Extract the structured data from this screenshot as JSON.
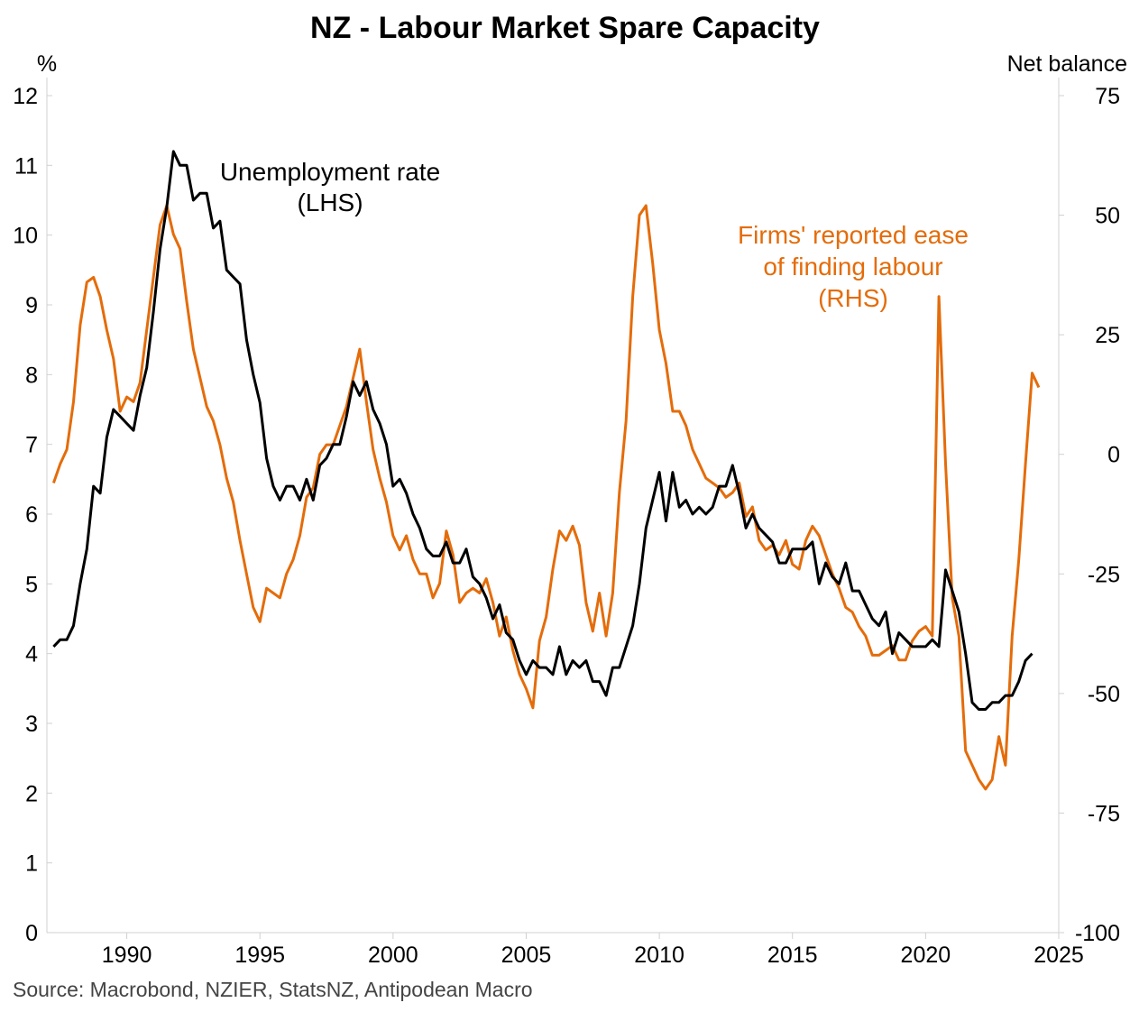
{
  "chart_data": {
    "type": "line",
    "title": "NZ - Labour Market Spare Capacity",
    "source": "Source: Macrobond, NZIER, StatsNZ, Antipodean Macro",
    "y_left": {
      "unit_label": "%",
      "ylim": [
        0,
        12
      ],
      "ticks": [
        "0",
        "1",
        "2",
        "3",
        "4",
        "5",
        "6",
        "7",
        "8",
        "9",
        "10",
        "11",
        "12"
      ]
    },
    "y_right": {
      "unit_label": "Net balance",
      "ylim": [
        -100,
        75
      ],
      "ticks": [
        "-100",
        "-75",
        "-50",
        "-25",
        "0",
        "25",
        "50",
        "75"
      ]
    },
    "x": {
      "xlim": [
        1987,
        2025
      ],
      "ticks": [
        "1990",
        "1995",
        "2000",
        "2005",
        "2010",
        "2015",
        "2020",
        "2025"
      ]
    },
    "grid": false,
    "annotations": [
      {
        "series": "unemployment",
        "lines": [
          "Unemployment rate",
          "(LHS)"
        ]
      },
      {
        "series": "firms",
        "lines": [
          "Firms' reported ease",
          "of finding labour",
          "(RHS)"
        ]
      }
    ],
    "series": [
      {
        "id": "unemployment",
        "axis": "left",
        "color": "#000000",
        "points": [
          [
            1987.25,
            4.1
          ],
          [
            1987.5,
            4.2
          ],
          [
            1987.75,
            4.2
          ],
          [
            1988.0,
            4.4
          ],
          [
            1988.25,
            5.0
          ],
          [
            1988.5,
            5.5
          ],
          [
            1988.75,
            6.4
          ],
          [
            1989.0,
            6.3
          ],
          [
            1989.25,
            7.1
          ],
          [
            1989.5,
            7.5
          ],
          [
            1989.75,
            7.4
          ],
          [
            1990.0,
            7.3
          ],
          [
            1990.25,
            7.2
          ],
          [
            1990.5,
            7.7
          ],
          [
            1990.75,
            8.1
          ],
          [
            1991.0,
            8.9
          ],
          [
            1991.25,
            9.8
          ],
          [
            1991.5,
            10.4
          ],
          [
            1991.75,
            11.2
          ],
          [
            1992.0,
            11.0
          ],
          [
            1992.25,
            11.0
          ],
          [
            1992.5,
            10.5
          ],
          [
            1992.75,
            10.6
          ],
          [
            1993.0,
            10.6
          ],
          [
            1993.25,
            10.1
          ],
          [
            1993.5,
            10.2
          ],
          [
            1993.75,
            9.5
          ],
          [
            1994.0,
            9.4
          ],
          [
            1994.25,
            9.3
          ],
          [
            1994.5,
            8.5
          ],
          [
            1994.75,
            8.0
          ],
          [
            1995.0,
            7.6
          ],
          [
            1995.25,
            6.8
          ],
          [
            1995.5,
            6.4
          ],
          [
            1995.75,
            6.2
          ],
          [
            1996.0,
            6.4
          ],
          [
            1996.25,
            6.4
          ],
          [
            1996.5,
            6.2
          ],
          [
            1996.75,
            6.5
          ],
          [
            1997.0,
            6.2
          ],
          [
            1997.25,
            6.7
          ],
          [
            1997.5,
            6.8
          ],
          [
            1997.75,
            7.0
          ],
          [
            1998.0,
            7.0
          ],
          [
            1998.25,
            7.4
          ],
          [
            1998.5,
            7.9
          ],
          [
            1998.75,
            7.7
          ],
          [
            1999.0,
            7.9
          ],
          [
            1999.25,
            7.5
          ],
          [
            1999.5,
            7.3
          ],
          [
            1999.75,
            7.0
          ],
          [
            2000.0,
            6.4
          ],
          [
            2000.25,
            6.5
          ],
          [
            2000.5,
            6.3
          ],
          [
            2000.75,
            6.0
          ],
          [
            2001.0,
            5.8
          ],
          [
            2001.25,
            5.5
          ],
          [
            2001.5,
            5.4
          ],
          [
            2001.75,
            5.4
          ],
          [
            2002.0,
            5.6
          ],
          [
            2002.25,
            5.3
          ],
          [
            2002.5,
            5.3
          ],
          [
            2002.75,
            5.5
          ],
          [
            2003.0,
            5.1
          ],
          [
            2003.25,
            5.0
          ],
          [
            2003.5,
            4.8
          ],
          [
            2003.75,
            4.5
          ],
          [
            2004.0,
            4.7
          ],
          [
            2004.25,
            4.3
          ],
          [
            2004.5,
            4.2
          ],
          [
            2004.75,
            3.9
          ],
          [
            2005.0,
            3.7
          ],
          [
            2005.25,
            3.9
          ],
          [
            2005.5,
            3.8
          ],
          [
            2005.75,
            3.8
          ],
          [
            2006.0,
            3.7
          ],
          [
            2006.25,
            4.1
          ],
          [
            2006.5,
            3.7
          ],
          [
            2006.75,
            3.9
          ],
          [
            2007.0,
            3.8
          ],
          [
            2007.25,
            3.9
          ],
          [
            2007.5,
            3.6
          ],
          [
            2007.75,
            3.6
          ],
          [
            2008.0,
            3.4
          ],
          [
            2008.25,
            3.8
          ],
          [
            2008.5,
            3.8
          ],
          [
            2008.75,
            4.1
          ],
          [
            2009.0,
            4.4
          ],
          [
            2009.25,
            5.0
          ],
          [
            2009.5,
            5.8
          ],
          [
            2009.75,
            6.2
          ],
          [
            2010.0,
            6.6
          ],
          [
            2010.25,
            5.9
          ],
          [
            2010.5,
            6.6
          ],
          [
            2010.75,
            6.1
          ],
          [
            2011.0,
            6.2
          ],
          [
            2011.25,
            6.0
          ],
          [
            2011.5,
            6.1
          ],
          [
            2011.75,
            6.0
          ],
          [
            2012.0,
            6.1
          ],
          [
            2012.25,
            6.4
          ],
          [
            2012.5,
            6.4
          ],
          [
            2012.75,
            6.7
          ],
          [
            2013.0,
            6.3
          ],
          [
            2013.25,
            5.8
          ],
          [
            2013.5,
            6.0
          ],
          [
            2013.75,
            5.8
          ],
          [
            2014.0,
            5.7
          ],
          [
            2014.25,
            5.6
          ],
          [
            2014.5,
            5.3
          ],
          [
            2014.75,
            5.3
          ],
          [
            2015.0,
            5.5
          ],
          [
            2015.25,
            5.5
          ],
          [
            2015.5,
            5.5
          ],
          [
            2015.75,
            5.6
          ],
          [
            2016.0,
            5.0
          ],
          [
            2016.25,
            5.3
          ],
          [
            2016.5,
            5.1
          ],
          [
            2016.75,
            5.0
          ],
          [
            2017.0,
            5.3
          ],
          [
            2017.25,
            4.9
          ],
          [
            2017.5,
            4.9
          ],
          [
            2017.75,
            4.7
          ],
          [
            2018.0,
            4.5
          ],
          [
            2018.25,
            4.4
          ],
          [
            2018.5,
            4.6
          ],
          [
            2018.75,
            4.0
          ],
          [
            2019.0,
            4.3
          ],
          [
            2019.25,
            4.2
          ],
          [
            2019.5,
            4.1
          ],
          [
            2019.75,
            4.1
          ],
          [
            2020.0,
            4.1
          ],
          [
            2020.25,
            4.2
          ],
          [
            2020.5,
            4.1
          ],
          [
            2020.75,
            5.2
          ],
          [
            2021.0,
            4.9
          ],
          [
            2021.25,
            4.6
          ],
          [
            2021.5,
            4.0
          ],
          [
            2021.75,
            3.3
          ],
          [
            2022.0,
            3.2
          ],
          [
            2022.25,
            3.2
          ],
          [
            2022.5,
            3.3
          ],
          [
            2022.75,
            3.3
          ],
          [
            2023.0,
            3.4
          ],
          [
            2023.25,
            3.4
          ],
          [
            2023.5,
            3.6
          ],
          [
            2023.75,
            3.9
          ],
          [
            2024.0,
            4.0
          ]
        ]
      },
      {
        "id": "firms",
        "axis": "right",
        "color": "#E46C0A",
        "points": [
          [
            1987.25,
            -6
          ],
          [
            1987.5,
            -2
          ],
          [
            1987.75,
            1
          ],
          [
            1988.0,
            11
          ],
          [
            1988.25,
            27
          ],
          [
            1988.5,
            36
          ],
          [
            1988.75,
            37
          ],
          [
            1989.0,
            33
          ],
          [
            1989.25,
            26
          ],
          [
            1989.5,
            20
          ],
          [
            1989.75,
            9
          ],
          [
            1990.0,
            12
          ],
          [
            1990.25,
            11
          ],
          [
            1990.5,
            15
          ],
          [
            1990.75,
            26
          ],
          [
            1991.0,
            37
          ],
          [
            1991.25,
            48
          ],
          [
            1991.5,
            52
          ],
          [
            1991.75,
            46
          ],
          [
            1992.0,
            43
          ],
          [
            1992.25,
            32
          ],
          [
            1992.5,
            22
          ],
          [
            1992.75,
            16
          ],
          [
            1993.0,
            10
          ],
          [
            1993.25,
            7
          ],
          [
            1993.5,
            2
          ],
          [
            1993.75,
            -5
          ],
          [
            1994.0,
            -10
          ],
          [
            1994.25,
            -18
          ],
          [
            1994.5,
            -25
          ],
          [
            1994.75,
            -32
          ],
          [
            1995.0,
            -35
          ],
          [
            1995.25,
            -28
          ],
          [
            1995.5,
            -29
          ],
          [
            1995.75,
            -30
          ],
          [
            1996.0,
            -25
          ],
          [
            1996.25,
            -22
          ],
          [
            1996.5,
            -17
          ],
          [
            1996.75,
            -9
          ],
          [
            1997.0,
            -7
          ],
          [
            1997.25,
            0
          ],
          [
            1997.5,
            2
          ],
          [
            1997.75,
            2
          ],
          [
            1998.0,
            6
          ],
          [
            1998.25,
            10
          ],
          [
            1998.5,
            16
          ],
          [
            1998.75,
            22
          ],
          [
            1999.0,
            11
          ],
          [
            1999.25,
            1
          ],
          [
            1999.5,
            -5
          ],
          [
            1999.75,
            -10
          ],
          [
            2000.0,
            -17
          ],
          [
            2000.25,
            -20
          ],
          [
            2000.5,
            -17
          ],
          [
            2000.75,
            -22
          ],
          [
            2001.0,
            -25
          ],
          [
            2001.25,
            -25
          ],
          [
            2001.5,
            -30
          ],
          [
            2001.75,
            -27
          ],
          [
            2002.0,
            -16
          ],
          [
            2002.25,
            -21
          ],
          [
            2002.5,
            -31
          ],
          [
            2002.75,
            -29
          ],
          [
            2003.0,
            -28
          ],
          [
            2003.25,
            -29
          ],
          [
            2003.5,
            -26
          ],
          [
            2003.75,
            -31
          ],
          [
            2004.0,
            -38
          ],
          [
            2004.25,
            -34
          ],
          [
            2004.5,
            -41
          ],
          [
            2004.75,
            -46
          ],
          [
            2005.0,
            -49
          ],
          [
            2005.25,
            -53
          ],
          [
            2005.5,
            -39
          ],
          [
            2005.75,
            -34
          ],
          [
            2006.0,
            -24
          ],
          [
            2006.25,
            -16
          ],
          [
            2006.5,
            -18
          ],
          [
            2006.75,
            -15
          ],
          [
            2007.0,
            -19
          ],
          [
            2007.25,
            -31
          ],
          [
            2007.5,
            -37
          ],
          [
            2007.75,
            -29
          ],
          [
            2008.0,
            -38
          ],
          [
            2008.25,
            -29
          ],
          [
            2008.5,
            -8
          ],
          [
            2008.75,
            7
          ],
          [
            2009.0,
            33
          ],
          [
            2009.25,
            50
          ],
          [
            2009.5,
            52
          ],
          [
            2009.75,
            40
          ],
          [
            2010.0,
            26
          ],
          [
            2010.25,
            19
          ],
          [
            2010.5,
            9
          ],
          [
            2010.75,
            9
          ],
          [
            2011.0,
            6
          ],
          [
            2011.25,
            1
          ],
          [
            2011.5,
            -2
          ],
          [
            2011.75,
            -5
          ],
          [
            2012.0,
            -6
          ],
          [
            2012.25,
            -7
          ],
          [
            2012.5,
            -9
          ],
          [
            2012.75,
            -8
          ],
          [
            2013.0,
            -6
          ],
          [
            2013.25,
            -13
          ],
          [
            2013.5,
            -11
          ],
          [
            2013.75,
            -18
          ],
          [
            2014.0,
            -20
          ],
          [
            2014.25,
            -19
          ],
          [
            2014.5,
            -21
          ],
          [
            2014.75,
            -18
          ],
          [
            2015.0,
            -23
          ],
          [
            2015.25,
            -24
          ],
          [
            2015.5,
            -18
          ],
          [
            2015.75,
            -15
          ],
          [
            2016.0,
            -17
          ],
          [
            2016.25,
            -21
          ],
          [
            2016.5,
            -25
          ],
          [
            2016.75,
            -28
          ],
          [
            2017.0,
            -32
          ],
          [
            2017.25,
            -33
          ],
          [
            2017.5,
            -36
          ],
          [
            2017.75,
            -38
          ],
          [
            2018.0,
            -42
          ],
          [
            2018.25,
            -42
          ],
          [
            2018.5,
            -41
          ],
          [
            2018.75,
            -40
          ],
          [
            2019.0,
            -43
          ],
          [
            2019.25,
            -43
          ],
          [
            2019.5,
            -39
          ],
          [
            2019.75,
            -37
          ],
          [
            2020.0,
            -36
          ],
          [
            2020.25,
            -38
          ],
          [
            2020.5,
            33
          ],
          [
            2020.75,
            -2
          ],
          [
            2021.0,
            -30
          ],
          [
            2021.25,
            -38
          ],
          [
            2021.5,
            -62
          ],
          [
            2021.75,
            -65
          ],
          [
            2022.0,
            -68
          ],
          [
            2022.25,
            -70
          ],
          [
            2022.5,
            -68
          ],
          [
            2022.75,
            -59
          ],
          [
            2023.0,
            -65
          ],
          [
            2023.25,
            -38
          ],
          [
            2023.5,
            -22
          ],
          [
            2023.75,
            -2
          ],
          [
            2024.0,
            17
          ],
          [
            2024.25,
            14
          ]
        ]
      }
    ]
  }
}
